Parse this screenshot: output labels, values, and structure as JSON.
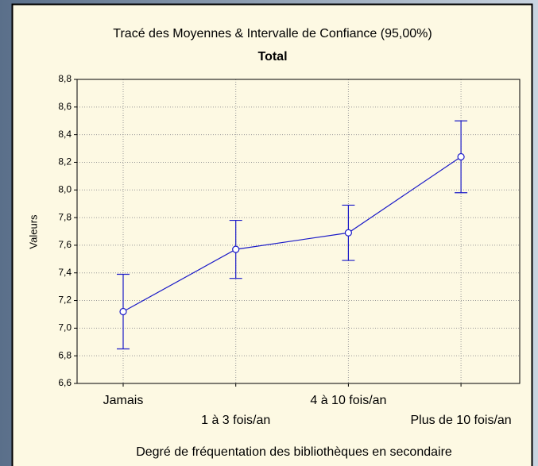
{
  "chart_data": {
    "type": "line",
    "title": "Tracé des Moyennes & Intervalle de Confiance (95,00%)",
    "subtitle": "Total",
    "x_label": "Degré de fréquentation des bibliothèques en secondaire",
    "y_label": "Valeurs",
    "categories": [
      "Jamais",
      "1 à 3 fois/an",
      "4 à 10 fois/an",
      "Plus de 10 fois/an"
    ],
    "series": [
      {
        "name": "Total",
        "color": "#1a1ac8",
        "values": [
          7.12,
          7.57,
          7.69,
          8.24
        ],
        "errors": [
          0.27,
          0.21,
          0.2,
          0.26
        ]
      }
    ],
    "ylim": [
      6.6,
      8.8
    ],
    "yticks": [
      {
        "value": 6.6,
        "label": "6,6"
      },
      {
        "value": 6.8,
        "label": "6,8"
      },
      {
        "value": 7.0,
        "label": "7,0"
      },
      {
        "value": 7.2,
        "label": "7,2"
      },
      {
        "value": 7.4,
        "label": "7,4"
      },
      {
        "value": 7.6,
        "label": "7,6"
      },
      {
        "value": 7.8,
        "label": "7,8"
      },
      {
        "value": 8.0,
        "label": "8,0"
      },
      {
        "value": 8.2,
        "label": "8,2"
      },
      {
        "value": 8.4,
        "label": "8,4"
      },
      {
        "value": 8.6,
        "label": "8,6"
      },
      {
        "value": 8.8,
        "label": "8,8"
      }
    ],
    "grid": true
  }
}
